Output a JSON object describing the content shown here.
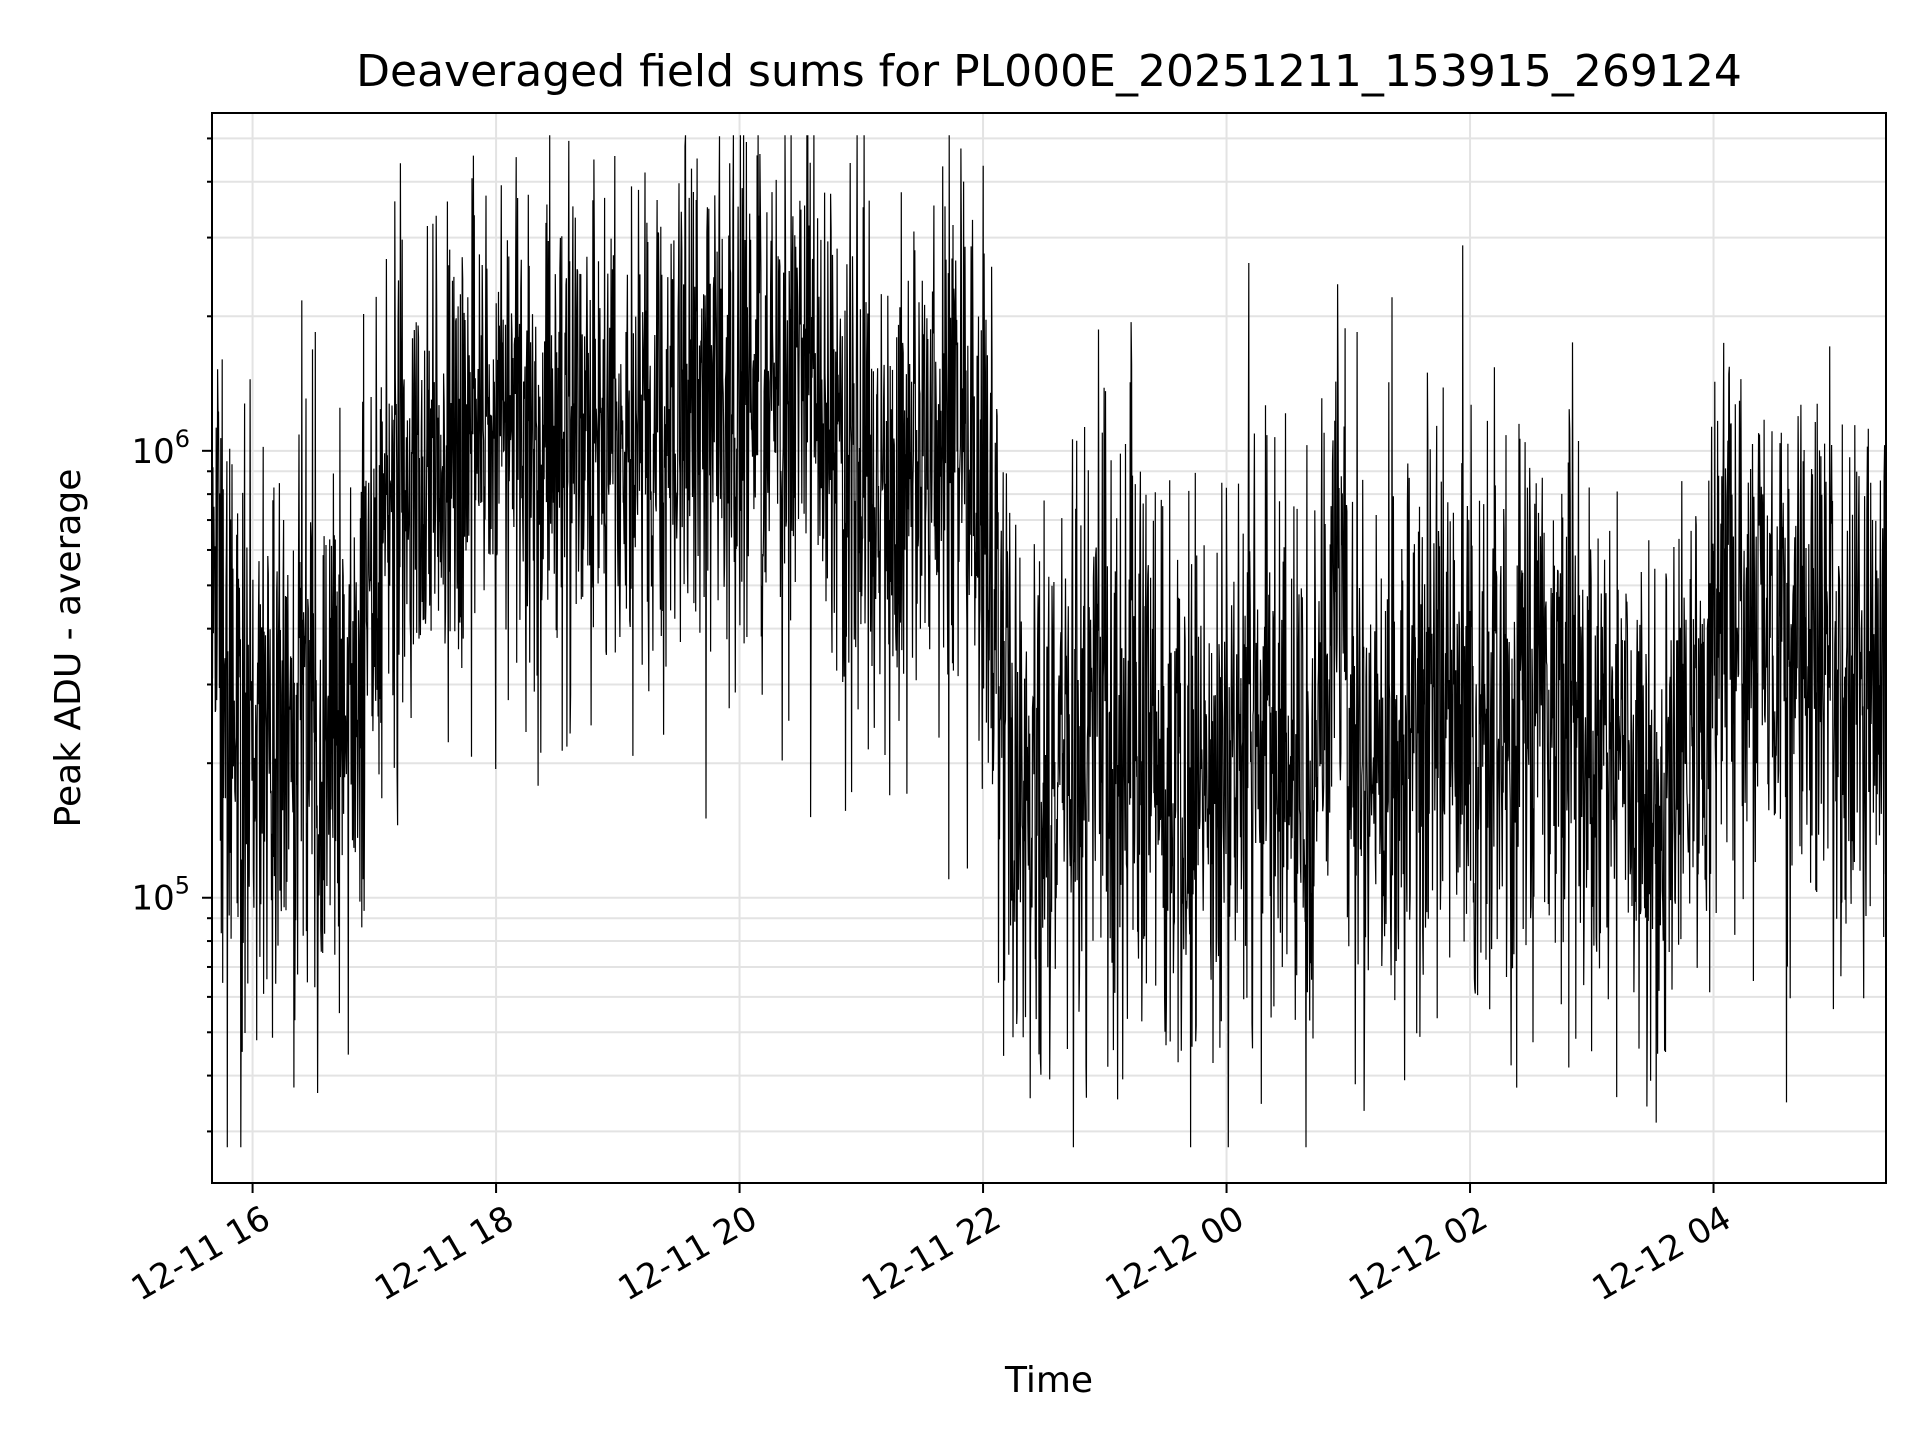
{
  "chart_data": {
    "type": "line",
    "title": "Deaveraged field sums for PL000E_20251211_153915_269124",
    "xlabel": "Time",
    "ylabel": "Peak ADU - average",
    "yscale": "log",
    "xlim": [
      "2025-12-11 15:40",
      "2025-12-12 05:25"
    ],
    "ylim": [
      23000,
      5700000
    ],
    "grid": true,
    "x_ticks": [
      {
        "label": "12-11 16",
        "time": "2025-12-11 16:00"
      },
      {
        "label": "12-11 18",
        "time": "2025-12-11 18:00"
      },
      {
        "label": "12-11 20",
        "time": "2025-12-11 20:00"
      },
      {
        "label": "12-11 22",
        "time": "2025-12-11 22:00"
      },
      {
        "label": "12-12 00",
        "time": "2025-12-12 00:00"
      },
      {
        "label": "12-12 02",
        "time": "2025-12-12 02:00"
      },
      {
        "label": "12-12 04",
        "time": "2025-12-12 04:00"
      }
    ],
    "y_ticks": [
      {
        "mantissa": "10",
        "exponent": "5",
        "value": 100000
      },
      {
        "mantissa": "10",
        "exponent": "6",
        "value": 1000000
      }
    ],
    "series": [
      {
        "color": "#000000",
        "trend": [
          {
            "time": "2025-12-11 15:40",
            "center": 900000,
            "spread": 0.35
          },
          {
            "time": "2025-12-11 15:50",
            "center": 230000,
            "spread": 0.35
          },
          {
            "time": "2025-12-11 16:30",
            "center": 230000,
            "spread": 0.35
          },
          {
            "time": "2025-12-11 16:55",
            "center": 350000,
            "spread": 0.35
          },
          {
            "time": "2025-12-11 17:10",
            "center": 950000,
            "spread": 0.3
          },
          {
            "time": "2025-12-11 18:00",
            "center": 1100000,
            "spread": 0.3
          },
          {
            "time": "2025-12-11 19:00",
            "center": 1050000,
            "spread": 0.3
          },
          {
            "time": "2025-12-11 20:00",
            "center": 1450000,
            "spread": 0.3
          },
          {
            "time": "2025-12-11 20:40",
            "center": 1300000,
            "spread": 0.32
          },
          {
            "time": "2025-12-11 21:10",
            "center": 600000,
            "spread": 0.35
          },
          {
            "time": "2025-12-11 21:40",
            "center": 1400000,
            "spread": 0.3
          },
          {
            "time": "2025-12-11 22:00",
            "center": 700000,
            "spread": 0.35
          },
          {
            "time": "2025-12-11 22:20",
            "center": 140000,
            "spread": 0.33
          },
          {
            "time": "2025-12-11 22:50",
            "center": 230000,
            "spread": 0.35
          },
          {
            "time": "2025-12-11 23:10",
            "center": 280000,
            "spread": 0.35
          },
          {
            "time": "2025-12-11 23:40",
            "center": 140000,
            "spread": 0.33
          },
          {
            "time": "2025-12-12 00:10",
            "center": 250000,
            "spread": 0.35
          },
          {
            "time": "2025-12-12 00:40",
            "center": 180000,
            "spread": 0.35
          },
          {
            "time": "2025-12-12 00:55",
            "center": 500000,
            "spread": 0.35
          },
          {
            "time": "2025-12-12 01:10",
            "center": 170000,
            "spread": 0.33
          },
          {
            "time": "2025-12-12 01:40",
            "center": 280000,
            "spread": 0.35
          },
          {
            "time": "2025-12-12 02:10",
            "center": 230000,
            "spread": 0.35
          },
          {
            "time": "2025-12-12 02:40",
            "center": 260000,
            "spread": 0.35
          },
          {
            "time": "2025-12-12 03:20",
            "center": 170000,
            "spread": 0.3
          },
          {
            "time": "2025-12-12 03:50",
            "center": 210000,
            "spread": 0.3
          },
          {
            "time": "2025-12-12 04:10",
            "center": 450000,
            "spread": 0.33
          },
          {
            "time": "2025-12-12 04:35",
            "center": 300000,
            "spread": 0.35
          },
          {
            "time": "2025-12-12 05:25",
            "center": 350000,
            "spread": 0.33
          }
        ]
      }
    ]
  }
}
